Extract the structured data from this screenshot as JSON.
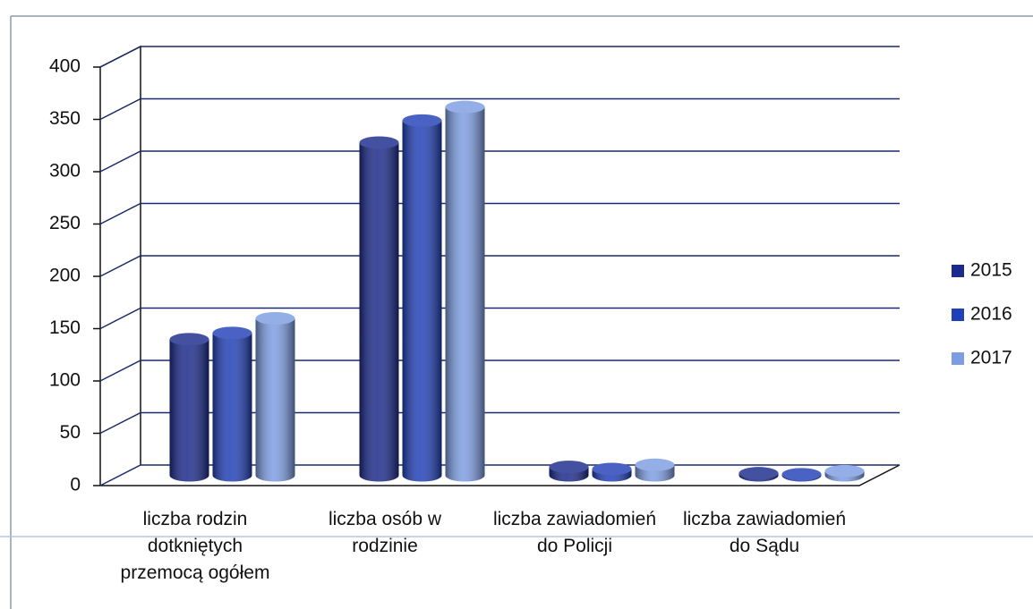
{
  "chart_data": {
    "type": "bar3d-cylinder",
    "categories": [
      "liczba rodzin dotkniętych przemocą ogółem",
      "liczba osób w rodzinie",
      "liczba zawiadomień do Policji",
      "liczba zawiadomień do Sądu"
    ],
    "series": [
      {
        "name": "2015",
        "color": "#1b2a8c",
        "values": [
          130,
          318,
          8,
          2
        ]
      },
      {
        "name": "2016",
        "color": "#2140b8",
        "values": [
          136,
          339,
          6,
          1
        ]
      },
      {
        "name": "2017",
        "color": "#7d9de2",
        "values": [
          150,
          352,
          10,
          4
        ]
      }
    ],
    "ylim": [
      0,
      400
    ],
    "yticks": [
      0,
      50,
      100,
      150,
      200,
      250,
      300,
      350,
      400
    ],
    "grid": true,
    "legend": "right"
  }
}
